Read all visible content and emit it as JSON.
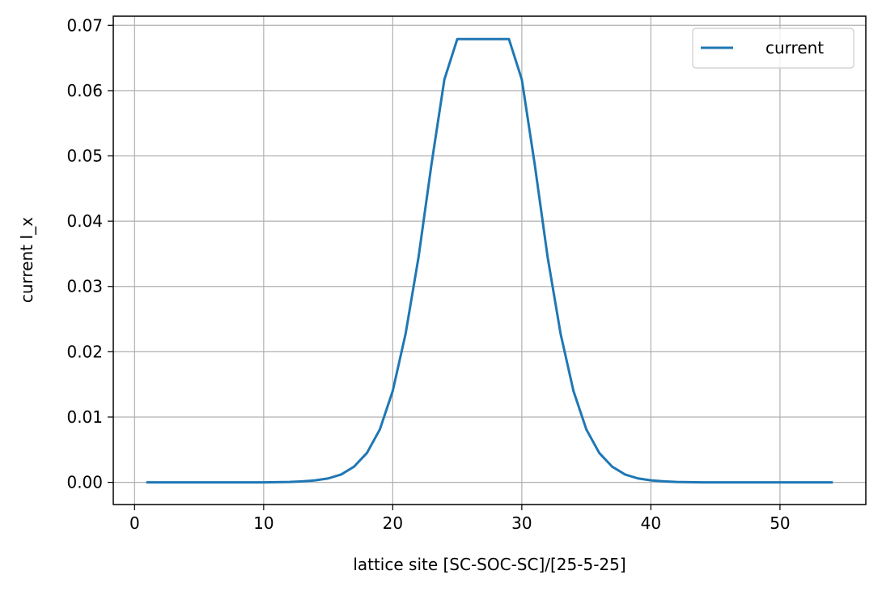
{
  "chart_data": {
    "type": "line",
    "title": "",
    "xlabel": "lattice site [SC-SOC-SC]/[25-5-25]",
    "ylabel": "current I_x",
    "xlim": [
      -1.65,
      56.65
    ],
    "ylim": [
      -0.0034,
      0.0714
    ],
    "xticks": [
      0,
      10,
      20,
      30,
      40,
      50
    ],
    "xtick_labels": [
      "0",
      "10",
      "20",
      "30",
      "40",
      "50"
    ],
    "yticks": [
      0.0,
      0.01,
      0.02,
      0.03,
      0.04,
      0.05,
      0.06,
      0.07
    ],
    "ytick_labels": [
      "0.00",
      "0.01",
      "0.02",
      "0.03",
      "0.04",
      "0.05",
      "0.06",
      "0.07"
    ],
    "grid": true,
    "legend_position": "top-right",
    "series": [
      {
        "name": "current",
        "color": "#1f77b4",
        "x": [
          1,
          2,
          3,
          4,
          5,
          6,
          7,
          8,
          9,
          10,
          11,
          12,
          13,
          14,
          15,
          16,
          17,
          18,
          19,
          20,
          21,
          22,
          23,
          24,
          25,
          26,
          27,
          28,
          29,
          30,
          31,
          32,
          33,
          34,
          35,
          36,
          37,
          38,
          39,
          40,
          41,
          42,
          43,
          44,
          45,
          46,
          47,
          48,
          49,
          50,
          51,
          52,
          53,
          54
        ],
        "y": [
          0,
          0,
          0,
          0,
          0,
          0,
          0,
          0,
          0,
          0,
          3e-05,
          6e-05,
          0.00015,
          0.0003,
          0.0006,
          0.0012,
          0.0024,
          0.0045,
          0.0081,
          0.014,
          0.0228,
          0.0345,
          0.0487,
          0.0617,
          0.0679,
          0.0679,
          0.0679,
          0.0679,
          0.0679,
          0.0617,
          0.0487,
          0.0345,
          0.0228,
          0.014,
          0.0081,
          0.0045,
          0.0024,
          0.0012,
          0.0006,
          0.0003,
          0.00015,
          6e-05,
          3e-05,
          0,
          0,
          0,
          0,
          0,
          0,
          0,
          0,
          0,
          0,
          0
        ]
      }
    ]
  }
}
